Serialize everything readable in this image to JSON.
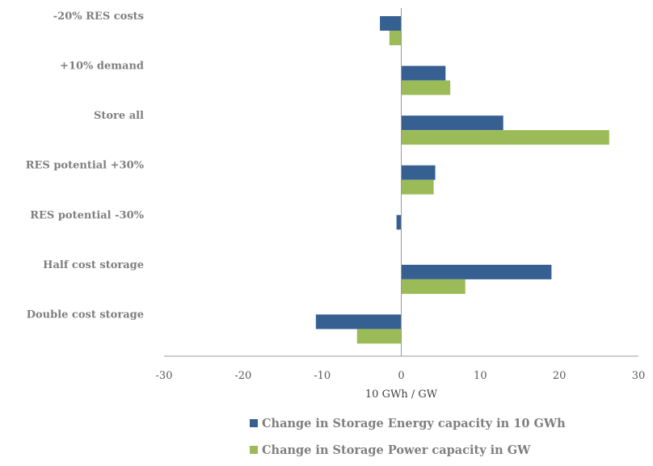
{
  "chart_data": {
    "type": "bar",
    "orientation": "horizontal",
    "categories": [
      "-20% RES costs",
      "+10% demand",
      "Store all",
      "RES potential +30%",
      "RES potential -30%",
      "Half cost storage",
      "Double cost storage"
    ],
    "series": [
      {
        "name": "Change in Storage Energy capacity in 10 GWh",
        "color": "#376092",
        "values": [
          -2.7,
          5.6,
          12.9,
          4.3,
          -0.6,
          19.0,
          -10.8
        ]
      },
      {
        "name": "Change in Storage Power capacity in GW",
        "color": "#9bbb59",
        "values": [
          -1.5,
          6.2,
          26.3,
          4.1,
          0,
          8.1,
          -5.6
        ]
      }
    ],
    "xlabel": "10 GWh  /  GW",
    "xlim": [
      -30,
      30
    ],
    "xticks": [
      "-30",
      "-20",
      "-10",
      "0",
      "10",
      "20",
      "30"
    ],
    "grid": false,
    "legend_position": "bottom"
  }
}
